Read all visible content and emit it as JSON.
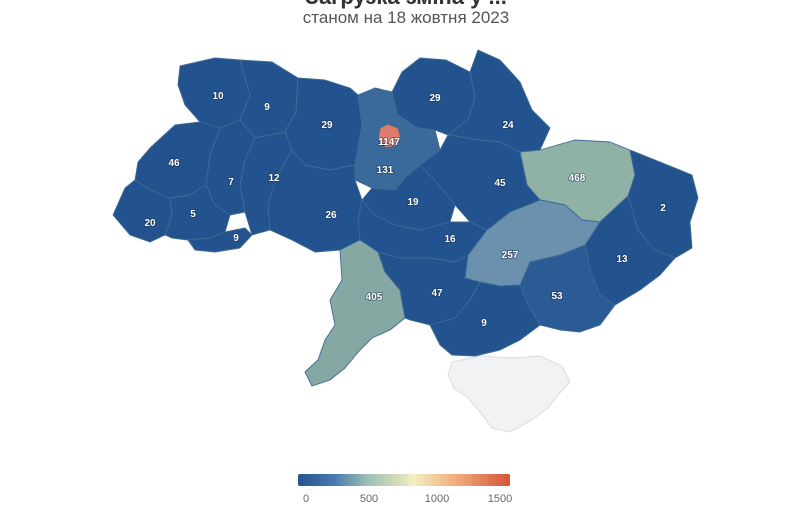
{
  "header": {
    "title": "Загрузка зміна у ... ",
    "subtitle": "станом на 18 жовтня 2023"
  },
  "map": {
    "regions": [
      {
        "id": "volyn",
        "value": "10",
        "color": "#22538f"
      },
      {
        "id": "rivne",
        "value": "9",
        "color": "#22538f"
      },
      {
        "id": "zhytomyr",
        "value": "29",
        "color": "#22538f"
      },
      {
        "id": "kyiv-oblast",
        "value": "131",
        "color": "#3a6a9b"
      },
      {
        "id": "kyiv-city",
        "value": "1147",
        "color": "#e07a6a"
      },
      {
        "id": "chernihiv",
        "value": "29",
        "color": "#22538f"
      },
      {
        "id": "sumy",
        "value": "24",
        "color": "#22538f"
      },
      {
        "id": "kharkiv",
        "value": "468",
        "color": "#8fb1a6"
      },
      {
        "id": "luhansk",
        "value": "2",
        "color": "#22538f"
      },
      {
        "id": "donetsk",
        "value": "13",
        "color": "#22538f"
      },
      {
        "id": "zaporizhzhia",
        "value": "53",
        "color": "#2a5b94"
      },
      {
        "id": "dnipro",
        "value": "257",
        "color": "#6b91af"
      },
      {
        "id": "poltava",
        "value": "45",
        "color": "#22538f"
      },
      {
        "id": "cherkasy",
        "value": "19",
        "color": "#22538f"
      },
      {
        "id": "kirovohrad",
        "value": "16",
        "color": "#22538f"
      },
      {
        "id": "vinnytsia",
        "value": "26",
        "color": "#22538f"
      },
      {
        "id": "khmelnytskyi",
        "value": "12",
        "color": "#22538f"
      },
      {
        "id": "ternopil",
        "value": "7",
        "color": "#22538f"
      },
      {
        "id": "lviv",
        "value": "46",
        "color": "#22538f"
      },
      {
        "id": "zakarpattia",
        "value": "20",
        "color": "#22538f"
      },
      {
        "id": "ivano-frankivsk",
        "value": "5",
        "color": "#22538f"
      },
      {
        "id": "chernivtsi",
        "value": "9",
        "color": "#22538f"
      },
      {
        "id": "odesa",
        "value": "405",
        "color": "#86a8a3"
      },
      {
        "id": "mykolaiv",
        "value": "47",
        "color": "#22538f"
      },
      {
        "id": "kherson",
        "value": "9",
        "color": "#22538f"
      }
    ],
    "no_data_color": "#f1f2f4"
  },
  "legend": {
    "ticks": [
      "0",
      "500",
      "1000",
      "1500"
    ],
    "colors": [
      "#22538f",
      "#9fbfb6",
      "#f3efc0",
      "#d4543a"
    ]
  }
}
